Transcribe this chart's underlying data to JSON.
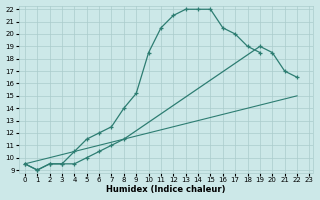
{
  "xlabel": "Humidex (Indice chaleur)",
  "bg_color": "#cce8e8",
  "grid_color": "#aacccc",
  "line_color": "#2d7d72",
  "line1_x": [
    0,
    1,
    2,
    3,
    4,
    5,
    6,
    7,
    8,
    9,
    10,
    11,
    12,
    13,
    14,
    15,
    16,
    17,
    18,
    19
  ],
  "line1_y": [
    9.5,
    9.0,
    9.5,
    9.5,
    10.5,
    11.5,
    12.0,
    12.5,
    14.0,
    15.2,
    18.5,
    20.5,
    21.5,
    22.0,
    22.0,
    22.0,
    20.5,
    20.0,
    19.0,
    18.5
  ],
  "line2_x": [
    0,
    1,
    2,
    3,
    4,
    5,
    6,
    7,
    8,
    19,
    20,
    21,
    22
  ],
  "line2_y": [
    9.5,
    9.0,
    9.5,
    9.5,
    9.5,
    10.0,
    10.5,
    11.0,
    11.5,
    19.0,
    18.5,
    17.0,
    16.5
  ],
  "line3_x": [
    0,
    22
  ],
  "line3_y": [
    9.5,
    15.0
  ],
  "xmin": 0,
  "xmax": 23,
  "ymin": 9,
  "ymax": 22,
  "yticks": [
    9,
    10,
    11,
    12,
    13,
    14,
    15,
    16,
    17,
    18,
    19,
    20,
    21,
    22
  ],
  "xticks": [
    0,
    1,
    2,
    3,
    4,
    5,
    6,
    7,
    8,
    9,
    10,
    11,
    12,
    13,
    14,
    15,
    16,
    17,
    18,
    19,
    20,
    21,
    22,
    23
  ]
}
